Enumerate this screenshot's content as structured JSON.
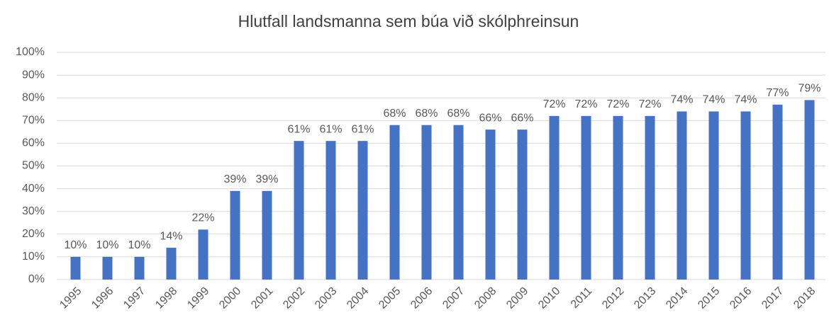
{
  "chart_data": {
    "type": "bar",
    "title": "Hlutfall landsmanna sem búa við skólphreinsun",
    "categories": [
      "1995",
      "1996",
      "1997",
      "1998",
      "1999",
      "2000",
      "2001",
      "2002",
      "2003",
      "2004",
      "2005",
      "2006",
      "2007",
      "2008",
      "2009",
      "2010",
      "2011",
      "2012",
      "2013",
      "2014",
      "2015",
      "2016",
      "2017",
      "2018"
    ],
    "values": [
      10,
      10,
      10,
      14,
      22,
      39,
      39,
      61,
      61,
      61,
      68,
      68,
      68,
      66,
      66,
      72,
      72,
      72,
      72,
      74,
      74,
      74,
      77,
      79
    ],
    "value_labels": [
      "10%",
      "10%",
      "10%",
      "14%",
      "22%",
      "39%",
      "39%",
      "61%",
      "61%",
      "61%",
      "68%",
      "68%",
      "68%",
      "66%",
      "66%",
      "72%",
      "72%",
      "72%",
      "72%",
      "74%",
      "74%",
      "74%",
      "77%",
      "79%"
    ],
    "color": "#4472c4",
    "ylim": [
      0,
      100
    ],
    "yticks": [
      {
        "value": 0,
        "label": "0%"
      },
      {
        "value": 10,
        "label": "10%"
      },
      {
        "value": 20,
        "label": "20%"
      },
      {
        "value": 30,
        "label": "30%"
      },
      {
        "value": 40,
        "label": "40%"
      },
      {
        "value": 50,
        "label": "50%"
      },
      {
        "value": 60,
        "label": "60%"
      },
      {
        "value": 70,
        "label": "70%"
      },
      {
        "value": 80,
        "label": "80%"
      },
      {
        "value": 90,
        "label": "90%"
      },
      {
        "value": 100,
        "label": "100%"
      }
    ],
    "grid": true
  }
}
